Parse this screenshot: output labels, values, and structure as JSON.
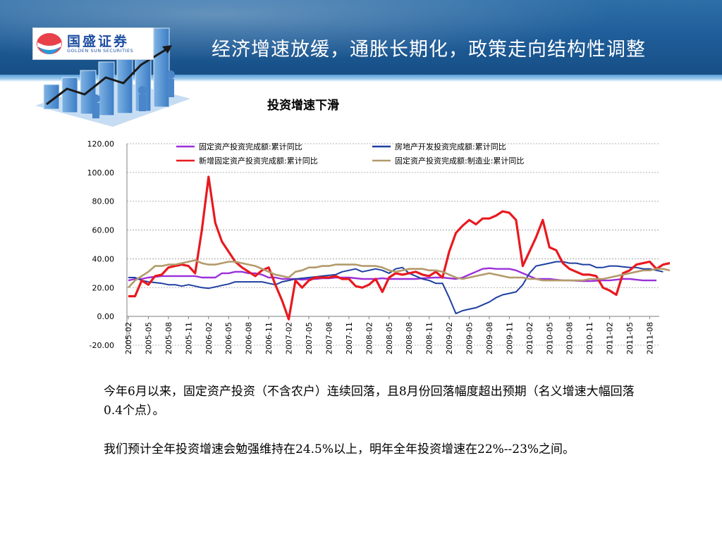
{
  "header": {
    "title": "经济增速放缓，通胀长期化，政策走向结构性调整",
    "logo_cn": "国盛证券",
    "logo_en": "GOLDEN SUN SECURITIES"
  },
  "chart_title": "投资增速下滑",
  "paragraphs": [
    "今年6月以来，固定资产投资（不含农户）连续回落，且8月份回落幅度超出预期（名义增速大幅回落0.4个点）。",
    "我们预计全年投资增速会勉强维持在24.5%以上，明年全年投资增速在22%--23%之间。"
  ],
  "chart_data": {
    "type": "line",
    "title": "投资增速下滑",
    "ylim": [
      -20,
      120
    ],
    "yticks": [
      -20,
      0,
      20,
      40,
      60,
      80,
      100,
      120
    ],
    "ytick_labels": [
      "-20.00",
      "0.00",
      "20.00",
      "40.00",
      "60.00",
      "80.00",
      "100.00",
      "120.00"
    ],
    "x_start": "2005-02",
    "x_tick_labels": [
      "2005-02",
      "2005-05",
      "2005-08",
      "2005-11",
      "2006-02",
      "2006-05",
      "2006-08",
      "2006-11",
      "2007-02",
      "2007-05",
      "2007-08",
      "2007-11",
      "2008-02",
      "2008-05",
      "2008-08",
      "2008-11",
      "2009-02",
      "2009-05",
      "2009-08",
      "2009-11",
      "2010-02",
      "2010-05",
      "2010-08",
      "2010-11",
      "2011-02",
      "2011-05",
      "2011-08"
    ],
    "legend_position": "top",
    "series": [
      {
        "name": "固定资产投资完成额:累计同比",
        "color": "#9b30d9",
        "values": [
          25,
          26,
          26,
          27,
          27.5,
          28,
          28,
          28,
          28,
          28,
          28,
          27,
          27,
          27,
          30,
          30,
          31,
          31,
          30,
          30,
          29,
          27,
          27,
          26,
          26,
          26,
          25.5,
          26,
          26,
          26.5,
          26.5,
          27,
          27,
          27,
          26.5,
          26,
          26,
          26,
          26.5,
          26,
          26,
          26,
          26,
          26,
          26.5,
          26.8,
          27,
          27,
          26.5,
          26,
          27,
          29,
          31,
          33,
          33.5,
          33,
          33,
          33,
          32,
          30,
          28,
          26,
          26,
          26,
          25.5,
          25,
          25,
          24.8,
          24.5,
          24.5,
          24.8,
          25,
          25,
          25.5,
          26,
          26,
          25.5,
          25,
          25,
          25
        ]
      },
      {
        "name": "房地产开发投资完成额:累计同比",
        "color": "#1f3fa0",
        "values": [
          27,
          27,
          25,
          24,
          23.5,
          23,
          22,
          22,
          21,
          22,
          21,
          20,
          19.5,
          20.5,
          21.5,
          22.5,
          24,
          24,
          24,
          24,
          24,
          23,
          22,
          24,
          25,
          26,
          26.5,
          27,
          27.5,
          28,
          28.5,
          29,
          31,
          32,
          33,
          31,
          32,
          33,
          32,
          30,
          33,
          34,
          30,
          28,
          26,
          25,
          23,
          23,
          13,
          2,
          4,
          5,
          6,
          8,
          10,
          13,
          15,
          16,
          17,
          22,
          30,
          35,
          36,
          37,
          38,
          38,
          37,
          37,
          36,
          36,
          34,
          34,
          35,
          35,
          34.5,
          34,
          34,
          33,
          33,
          32,
          31
        ]
      },
      {
        "name": "新增固定资产投资完成额:累计同比",
        "color": "#e8191f",
        "values": [
          14,
          14,
          25,
          22,
          28,
          29,
          34,
          35,
          36,
          35,
          30,
          60,
          97,
          65,
          52,
          45,
          38,
          34,
          31,
          28,
          32,
          34,
          22,
          11,
          -2,
          25,
          20,
          25,
          27,
          27,
          27,
          28,
          26,
          26,
          21,
          20,
          22,
          26,
          17,
          27,
          30,
          29,
          30,
          31,
          29,
          28,
          31,
          27,
          45,
          58,
          63,
          67,
          64,
          68,
          68,
          70,
          73,
          72,
          67,
          35,
          45,
          55,
          67,
          48,
          46,
          37,
          33,
          31,
          29,
          29,
          28,
          20,
          18,
          15,
          30,
          32,
          36,
          37,
          38,
          33,
          36,
          37,
          37
        ]
      },
      {
        "name": "固定资产投资完成额:制造业:累计同比",
        "color": "#b39a6b",
        "values": [
          20,
          25,
          28,
          31,
          35,
          35,
          36,
          36,
          37,
          38,
          39,
          37,
          36,
          36,
          37,
          38,
          38,
          37,
          36,
          35,
          33,
          31,
          29,
          28,
          27,
          31,
          32,
          34,
          34,
          35,
          35,
          36,
          36,
          36,
          36,
          35,
          35,
          35,
          34,
          32,
          31,
          32,
          33,
          33,
          33,
          32,
          32,
          31,
          29,
          27,
          26,
          27,
          28,
          29,
          30,
          29,
          28,
          27,
          27,
          27,
          26,
          26,
          25,
          25,
          25,
          25,
          25,
          25,
          25,
          26,
          26,
          26,
          27,
          28,
          29,
          30,
          31,
          32,
          32,
          33,
          33,
          32,
          31
        ]
      }
    ]
  }
}
